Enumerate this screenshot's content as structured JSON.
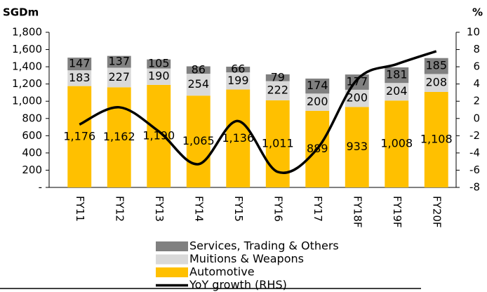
{
  "chart_data": {
    "type": "bar",
    "stacked": true,
    "y_label": "SGDm",
    "y2_label": "%",
    "categories": [
      "FY11",
      "FY12",
      "FY13",
      "FY14",
      "FY15",
      "FY16",
      "FY17",
      "FY18F",
      "FY19F",
      "FY20F"
    ],
    "series": [
      {
        "name": "Automotive",
        "color": "#ffc000",
        "values": [
          1176,
          1162,
          1190,
          1065,
          1136,
          1011,
          889,
          933,
          1008,
          1108
        ],
        "value_labels": [
          "1,176",
          "1,162",
          "1,190",
          "1,065",
          "1,136",
          "1,011",
          "889",
          "933",
          "1,008",
          "1,108"
        ]
      },
      {
        "name": "Muitions & Weapons",
        "color": "#d9d9d9",
        "values": [
          183,
          227,
          190,
          254,
          199,
          222,
          200,
          200,
          204,
          208
        ]
      },
      {
        "name": "Services, Trading & Others",
        "color": "#808080",
        "values": [
          147,
          137,
          105,
          86,
          66,
          79,
          174,
          177,
          181,
          185
        ]
      },
      {
        "name": "YoY growth (RHS)",
        "color": "#000000",
        "type": "line",
        "axis": "y2",
        "values": [
          -0.7,
          1.3,
          -1.5,
          -5.3,
          -0.3,
          -6.2,
          -3.5,
          4.5,
          6.3,
          7.8
        ]
      }
    ],
    "ylim": [
      0,
      1800
    ],
    "yticks": [
      {
        "value": 0,
        "label": "-"
      },
      200,
      400,
      600,
      800,
      {
        "value": 1000,
        "label": "1,000"
      },
      {
        "value": 1200,
        "label": "1,200"
      },
      {
        "value": 1400,
        "label": "1,400"
      },
      {
        "value": 1600,
        "label": "1,600"
      },
      {
        "value": 1800,
        "label": "1,800"
      }
    ],
    "y2lim": [
      -8,
      10
    ],
    "y2ticks": [
      -8,
      -6,
      -4,
      -2,
      0,
      2,
      4,
      6,
      8,
      10
    ],
    "legend": "bottom"
  }
}
